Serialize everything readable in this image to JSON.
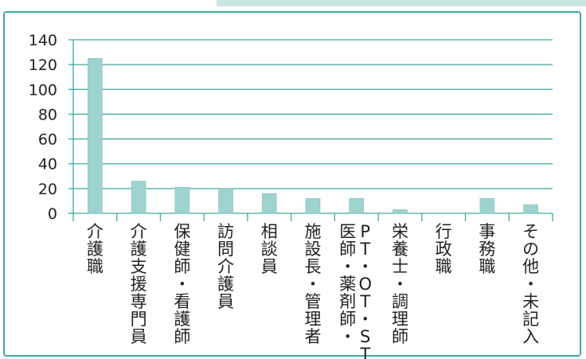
{
  "colors": {
    "bar": "#9fd3d0",
    "bar_edge": "#86c3bf",
    "gridline": "#3fa9a3",
    "frame": "#3fa9a3",
    "axis_text": "#231f20"
  },
  "chart_data": {
    "type": "bar",
    "title": "",
    "xlabel": "",
    "ylabel": "",
    "categories": [
      "介護職",
      "介護支援専門員",
      "保健師・看護師",
      "訪問介護員",
      "相談員",
      "施設長・管理者",
      "医師・薬剤師・PT・OT・ST",
      "栄養士・調理師",
      "行政職",
      "事務職",
      "その他・未記入"
    ],
    "values": [
      125,
      26,
      21,
      20,
      16,
      12,
      12,
      3,
      0,
      12,
      7
    ],
    "ylim": [
      0,
      140
    ],
    "yticks": [
      "0",
      "20",
      "40",
      "60",
      "80",
      "100",
      "120",
      "140"
    ],
    "grid": true,
    "legend": "none"
  }
}
